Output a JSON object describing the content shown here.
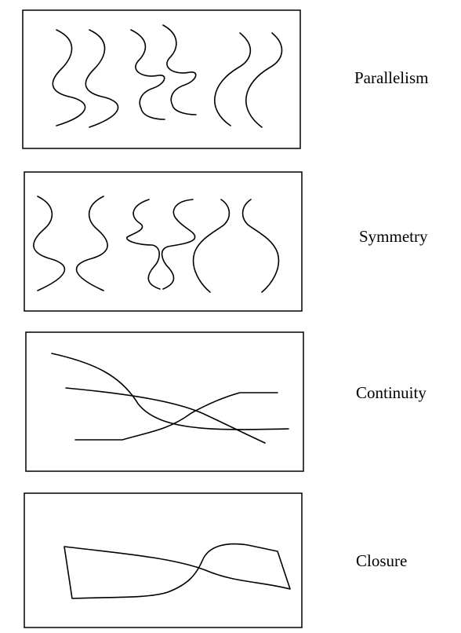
{
  "panels": [
    {
      "id": "parallelism",
      "label": "Parallelism"
    },
    {
      "id": "symmetry",
      "label": "Symmetry"
    },
    {
      "id": "continuity",
      "label": "Continuity"
    },
    {
      "id": "closure",
      "label": "Closure"
    }
  ]
}
